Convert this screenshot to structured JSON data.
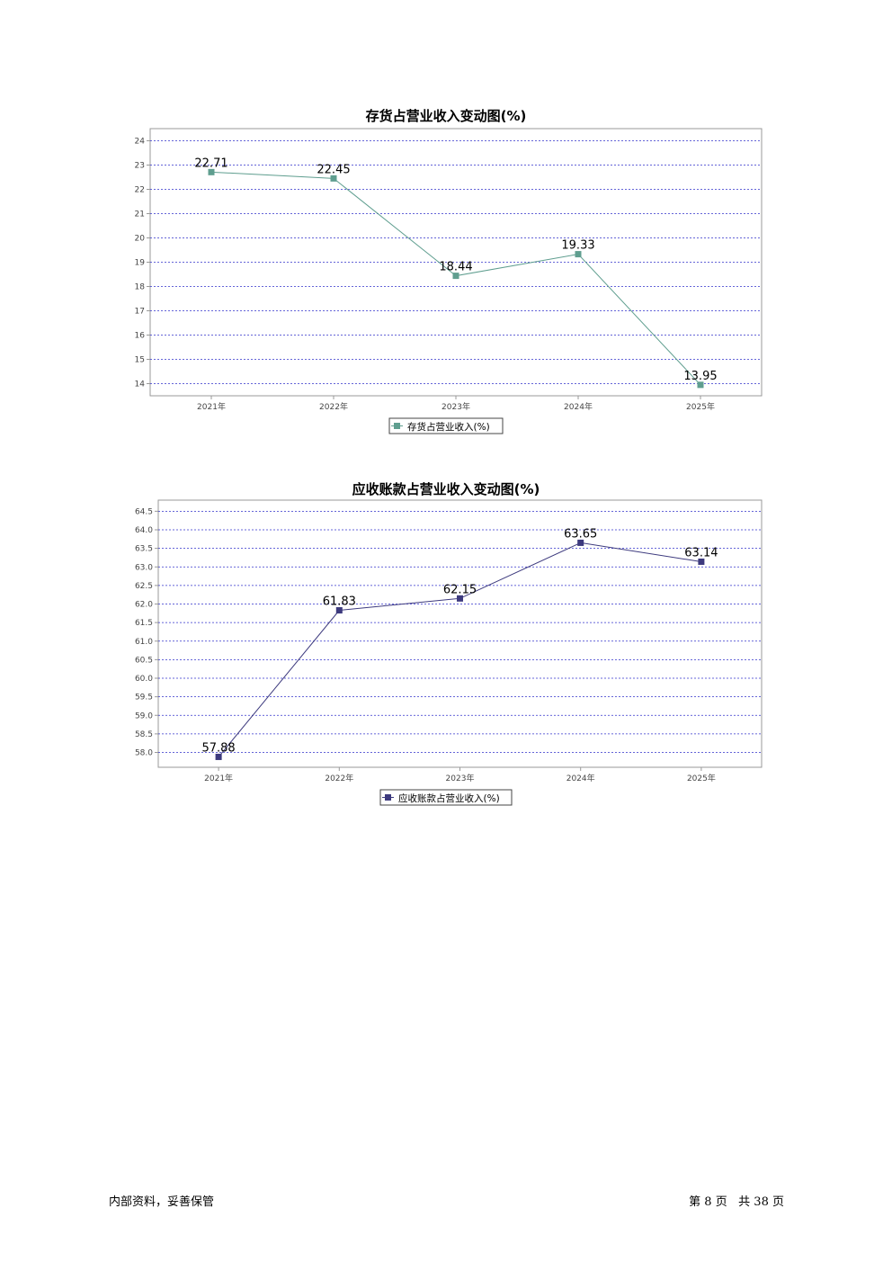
{
  "chart_data": [
    {
      "type": "line",
      "title": "存货占营业收入变动图(%)",
      "categories": [
        "2021年",
        "2022年",
        "2023年",
        "2024年",
        "2025年"
      ],
      "series": [
        {
          "name": "存货占营业收入(%)",
          "values": [
            22.71,
            22.45,
            18.44,
            19.33,
            13.95
          ],
          "color": "#5f9e8f"
        }
      ],
      "yticks": [
        "24",
        "23",
        "22",
        "21",
        "20",
        "19",
        "18",
        "17",
        "16",
        "15",
        "14"
      ],
      "ylim": [
        13.5,
        24.5
      ],
      "grid": true,
      "legend": "bottom-center"
    },
    {
      "type": "line",
      "title": "应收账款占营业收入变动图(%)",
      "categories": [
        "2021年",
        "2022年",
        "2023年",
        "2024年",
        "2025年"
      ],
      "series": [
        {
          "name": "应收账款占营业收入(%)",
          "values": [
            57.88,
            61.83,
            62.15,
            63.65,
            63.14
          ],
          "color": "#3d3a7e"
        }
      ],
      "yticks": [
        "64.5",
        "64.0",
        "63.5",
        "63.0",
        "62.5",
        "62.0",
        "61.5",
        "61.0",
        "60.5",
        "60.0",
        "59.5",
        "59.0",
        "58.5",
        "58.0"
      ],
      "ylim": [
        57.6,
        64.8
      ],
      "grid": true,
      "legend": "bottom-center"
    }
  ],
  "footer": {
    "left": "内部资料，妥善保管",
    "page_label_pre": "第",
    "page_num": "8",
    "page_label_mid": "页",
    "total_pre": "共",
    "total_num": "38",
    "total_post": "页"
  }
}
